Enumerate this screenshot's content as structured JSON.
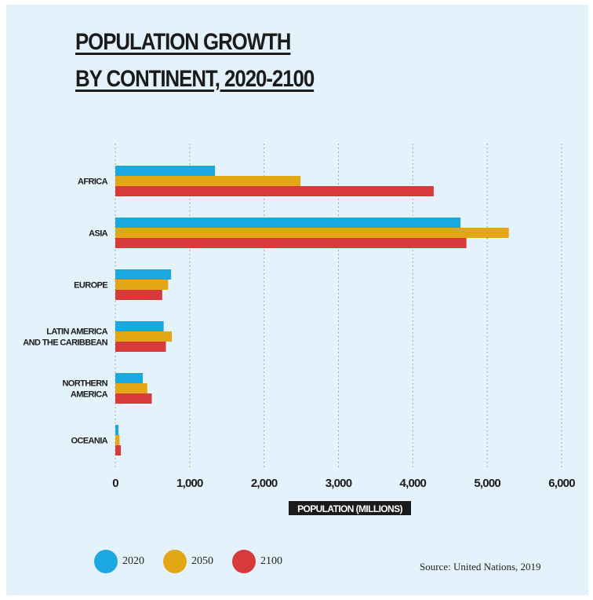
{
  "chart_data": {
    "type": "bar",
    "orientation": "horizontal",
    "title_lines": [
      "POPULATION GROWTH",
      "BY CONTINENT, 2020-2100"
    ],
    "xlabel": "POPULATION (MILLIONS)",
    "xlim": [
      0,
      6000
    ],
    "xticks": [
      "0",
      "1,000",
      "2,000",
      "3,000",
      "4,000",
      "5,000",
      "6,000"
    ],
    "grid": "vertical dotted",
    "categories": [
      [
        "AFRICA"
      ],
      [
        "ASIA"
      ],
      [
        "EUROPE"
      ],
      [
        "LATIN AMERICA",
        "AND THE CARIBBEAN"
      ],
      [
        "NORTHERN",
        "AMERICA"
      ],
      [
        "OCEANIA"
      ]
    ],
    "series": [
      {
        "name": "2020",
        "color": "#1ba8e0",
        "values": [
          1340,
          4640,
          750,
          650,
          370,
          43
        ]
      },
      {
        "name": "2050",
        "color": "#e3a614",
        "values": [
          2490,
          5290,
          710,
          760,
          430,
          57
        ]
      },
      {
        "name": "2100",
        "color": "#d73a3a",
        "values": [
          4280,
          4720,
          630,
          680,
          490,
          75
        ]
      }
    ],
    "legend_position": "bottom-left"
  },
  "source": "Source: United Nations, 2019"
}
